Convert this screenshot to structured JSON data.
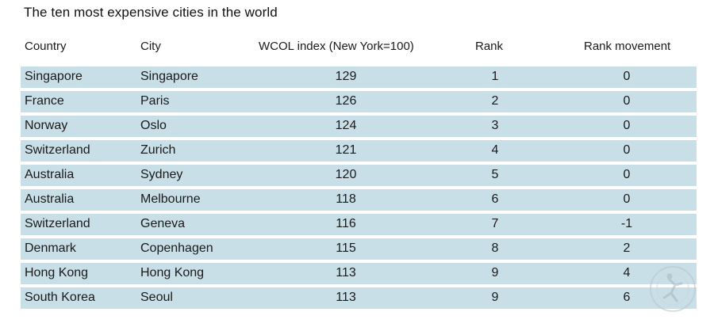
{
  "title": "The ten most expensive cities in the world",
  "chart_data": {
    "type": "table",
    "title": "The ten most expensive cities in the world",
    "columns": [
      "Country",
      "City",
      "WCOL index (New York=100)",
      "Rank",
      "Rank movement"
    ],
    "rows": [
      {
        "country": "Singapore",
        "city": "Singapore",
        "index": "129",
        "rank": "1",
        "movement": "0"
      },
      {
        "country": "France",
        "city": "Paris",
        "index": "126",
        "rank": "2",
        "movement": "0"
      },
      {
        "country": "Norway",
        "city": "Oslo",
        "index": "124",
        "rank": "3",
        "movement": "0"
      },
      {
        "country": "Switzerland",
        "city": "Zurich",
        "index": "121",
        "rank": "4",
        "movement": "0"
      },
      {
        "country": "Australia",
        "city": "Sydney",
        "index": "120",
        "rank": "5",
        "movement": "0"
      },
      {
        "country": "Australia",
        "city": "Melbourne",
        "index": "118",
        "rank": "6",
        "movement": "0"
      },
      {
        "country": "Switzerland",
        "city": "Geneva",
        "index": "116",
        "rank": "7",
        "movement": "-1"
      },
      {
        "country": "Denmark",
        "city": "Copenhagen",
        "index": "115",
        "rank": "8",
        "movement": "2"
      },
      {
        "country": "Hong Kong",
        "city": "Hong Kong",
        "index": "113",
        "rank": "9",
        "movement": "4"
      },
      {
        "country": "South Korea",
        "city": "Seoul",
        "index": "113",
        "rank": "9",
        "movement": "6"
      }
    ]
  },
  "colors": {
    "row_background": "#c9dfe8",
    "text": "#1a1a1a"
  },
  "watermark": {
    "icon": "runner-logo-icon"
  }
}
